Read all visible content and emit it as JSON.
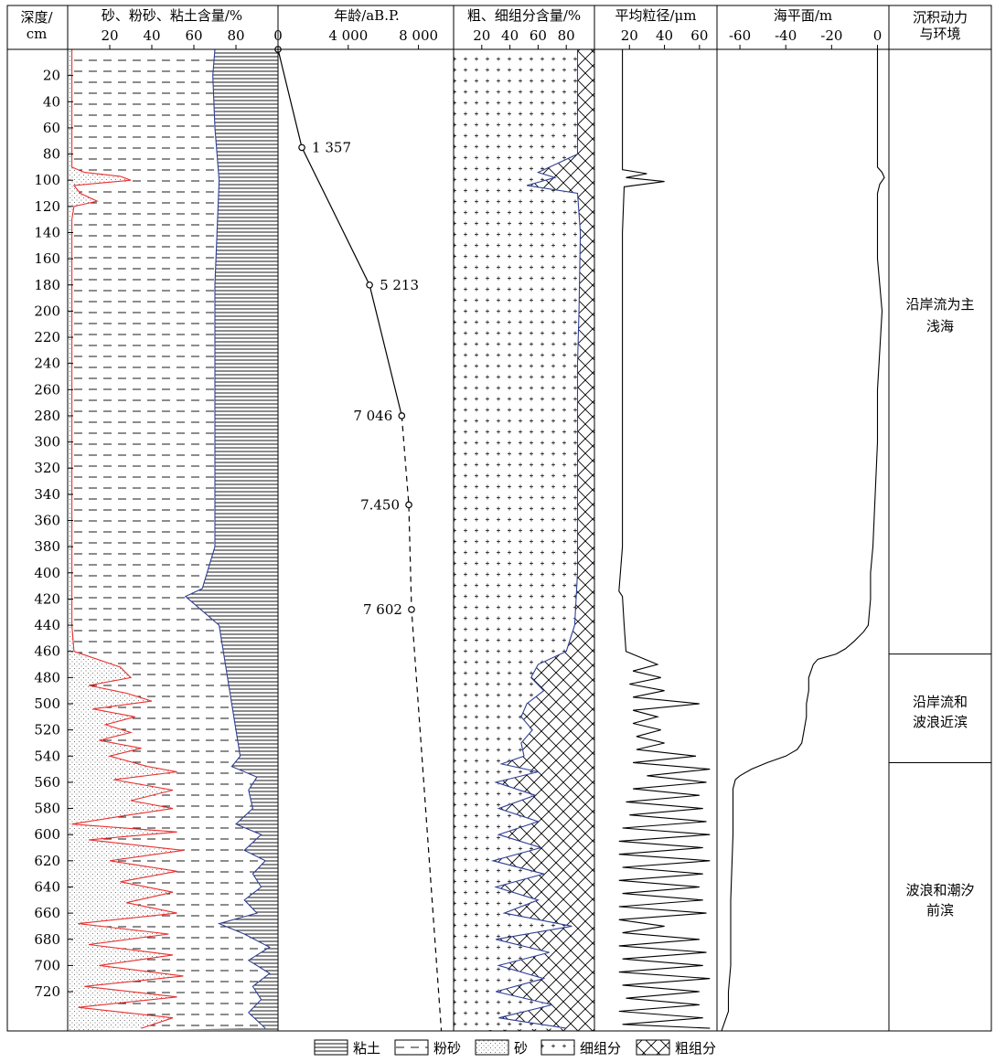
{
  "chart_data": {
    "type": "line",
    "depth_axis": {
      "label_line1": "深度/",
      "label_line2": "cm",
      "range": [
        0,
        750
      ],
      "ticks": [
        20,
        40,
        60,
        80,
        100,
        120,
        140,
        160,
        180,
        200,
        220,
        240,
        260,
        280,
        300,
        320,
        340,
        360,
        380,
        400,
        420,
        440,
        460,
        480,
        500,
        520,
        540,
        560,
        580,
        600,
        620,
        640,
        660,
        680,
        700,
        720
      ]
    },
    "panels": [
      {
        "id": "grain_composition",
        "title": "砂、粉砂、粘土含量/%",
        "xlim": [
          0,
          100
        ],
        "xticks": [
          20,
          40,
          60,
          80
        ],
        "series": [
          {
            "role": "sand",
            "color": "#e8312f",
            "depth": [
              0,
              20,
              40,
              60,
              80,
              90,
              94,
              97,
              100,
              104,
              110,
              116,
              120,
              130,
              160,
              200,
              240,
              280,
              320,
              360,
              400,
              440,
              460,
              472,
              480,
              486,
              492,
              498,
              504,
              510,
              516,
              522,
              528,
              534,
              540,
              548,
              552,
              558,
              566,
              574,
              580,
              586,
              592,
              598,
              604,
              612,
              620,
              628,
              636,
              644,
              652,
              660,
              668,
              676,
              684,
              692,
              700,
              708,
              716,
              724,
              732,
              740,
              748
            ],
            "values": [
              2,
              2,
              2,
              2,
              2,
              2,
              8,
              25,
              30,
              3,
              6,
              14,
              3,
              2,
              2,
              2,
              2,
              2,
              2,
              2,
              2,
              2,
              3,
              25,
              30,
              10,
              28,
              40,
              12,
              32,
              18,
              30,
              15,
              35,
              20,
              38,
              52,
              22,
              50,
              30,
              50,
              25,
              2,
              52,
              10,
              55,
              20,
              52,
              25,
              50,
              28,
              52,
              5,
              48,
              10,
              50,
              15,
              55,
              8,
              52,
              5,
              50,
              35
            ]
          },
          {
            "role": "sand_plus_silt",
            "color": "#2f3f94",
            "depth": [
              0,
              20,
              60,
              100,
              140,
              180,
              220,
              260,
              300,
              340,
              380,
              412,
              418,
              440,
              460,
              480,
              500,
              520,
              540,
              548,
              556,
              566,
              580,
              592,
              600,
              612,
              620,
              630,
              640,
              650,
              660,
              668,
              676,
              686,
              696,
              706,
              716,
              726,
              736,
              748
            ],
            "values": [
              70,
              69,
              70,
              72,
              71,
              70,
              70,
              70,
              70,
              70,
              70,
              64,
              56,
              72,
              74,
              76,
              78,
              80,
              82,
              78,
              90,
              86,
              88,
              80,
              92,
              84,
              94,
              88,
              92,
              84,
              90,
              72,
              84,
              96,
              86,
              96,
              88,
              92,
              86,
              94
            ]
          }
        ]
      },
      {
        "id": "age",
        "title": "年龄/aB.P.",
        "xlim": [
          0,
          10000
        ],
        "xtick_labels": [
          "0",
          "4 000",
          "8 000"
        ],
        "xtick_values": [
          0,
          4000,
          8000
        ],
        "points": [
          {
            "depth": 0,
            "age": 0,
            "label": ""
          },
          {
            "depth": 75,
            "age": 1357,
            "label": "1 357"
          },
          {
            "depth": 180,
            "age": 5213,
            "label": "5 213"
          },
          {
            "depth": 280,
            "age": 7046,
            "label": "7 046"
          },
          {
            "depth": 348,
            "age": 7450,
            "label": "7.450"
          },
          {
            "depth": 428,
            "age": 7602,
            "label": "7 602"
          }
        ],
        "extrapolated_bottom": {
          "depth": 750,
          "age": 9300
        }
      },
      {
        "id": "fraction_content",
        "title": "粗、细组分含量/%",
        "xlim": [
          0,
          100
        ],
        "xtick_values": [
          20,
          40,
          60,
          80
        ],
        "series": [
          {
            "role": "fine_fraction_boundary",
            "color": "#2f3f94",
            "depth": [
              0,
              40,
              80,
              94,
              98,
              104,
              110,
              140,
              200,
              240,
              280,
              320,
              360,
              400,
              440,
              460,
              470,
              480,
              490,
              500,
              510,
              520,
              530,
              540,
              546,
              552,
              560,
              570,
              580,
              590,
              600,
              610,
              620,
              630,
              640,
              650,
              660,
              670,
              680,
              690,
              700,
              710,
              720,
              730,
              740,
              748
            ],
            "values": [
              88,
              88,
              88,
              60,
              72,
              52,
              88,
              90,
              89,
              88,
              88,
              88,
              88,
              88,
              86,
              80,
              60,
              55,
              64,
              52,
              48,
              56,
              48,
              50,
              34,
              60,
              30,
              58,
              32,
              60,
              32,
              62,
              28,
              64,
              30,
              60,
              36,
              84,
              30,
              68,
              32,
              64,
              30,
              70,
              32,
              80
            ]
          }
        ]
      },
      {
        "id": "mean_grain_size",
        "title": "平均粒径/μm",
        "xlim": [
          0,
          70
        ],
        "xticks": [
          20,
          40,
          60
        ],
        "series": [
          {
            "role": "mean_grain_size",
            "color": "#000000",
            "depth": [
              0,
              20,
              60,
              92,
              95,
              98,
              101,
              105,
              140,
              200,
              260,
              320,
              380,
              414,
              418,
              440,
              460,
              470,
              475,
              480,
              485,
              490,
              495,
              500,
              505,
              510,
              515,
              520,
              525,
              530,
              535,
              540,
              545,
              550,
              555,
              560,
              565,
              570,
              575,
              580,
              585,
              590,
              595,
              600,
              605,
              610,
              615,
              620,
              625,
              630,
              635,
              640,
              645,
              650,
              655,
              660,
              665,
              670,
              675,
              680,
              685,
              690,
              695,
              700,
              705,
              710,
              715,
              720,
              725,
              730,
              735,
              740,
              745,
              748
            ],
            "values": [
              16,
              16,
              16,
              16,
              30,
              18,
              40,
              17,
              16,
              16,
              16,
              16,
              16,
              14,
              16,
              17,
              18,
              36,
              22,
              38,
              20,
              40,
              22,
              60,
              22,
              36,
              22,
              38,
              24,
              40,
              24,
              58,
              22,
              66,
              30,
              64,
              22,
              60,
              18,
              62,
              20,
              64,
              16,
              66,
              14,
              62,
              14,
              66,
              16,
              62,
              14,
              60,
              16,
              62,
              14,
              64,
              14,
              40,
              16,
              60,
              14,
              64,
              16,
              62,
              14,
              66,
              16,
              60,
              18,
              60,
              14,
              62,
              16,
              66
            ]
          }
        ]
      },
      {
        "id": "sea_level",
        "title": "海平面/m",
        "xlim": [
          -70,
          5
        ],
        "xtick_labels": [
          "-60",
          "-40",
          "-20",
          "0"
        ],
        "xtick_values": [
          -60,
          -40,
          -20,
          0
        ],
        "series": [
          {
            "role": "sea_level",
            "color": "#000000",
            "depth": [
              0,
              50,
              90,
              94,
              98,
              103,
              110,
              130,
              160,
              200,
              230,
              260,
              300,
              340,
              380,
              400,
              420,
              440,
              445,
              452,
              458,
              462,
              466,
              470,
              480,
              490,
              500,
              510,
              520,
              530,
              535,
              540,
              545,
              550,
              555,
              558,
              565,
              600,
              650,
              700,
              720,
              735,
              745,
              750
            ],
            "values": [
              0,
              0,
              0,
              2,
              3,
              1,
              0,
              0,
              0,
              2,
              1,
              0,
              0,
              -1,
              -2,
              -3,
              -3,
              -4,
              -6,
              -10,
              -14,
              -18,
              -26,
              -28,
              -30,
              -30,
              -31,
              -31,
              -32,
              -33,
              -35,
              -40,
              -48,
              -55,
              -60,
              -62,
              -63,
              -63,
              -64,
              -64,
              -65,
              -65,
              -67,
              -68
            ]
          }
        ]
      },
      {
        "id": "environment",
        "title_line1": "沉积动力",
        "title_line2": "与环境",
        "zones": [
          {
            "from": 0,
            "to": 462,
            "label_line1": "沿岸流为主",
            "label_line2": "浅海"
          },
          {
            "from": 462,
            "to": 545,
            "label_line1": "沿岸流和",
            "label_line2": "波浪近滨"
          },
          {
            "from": 545,
            "to": 750,
            "label_line1": "波浪和潮汐",
            "label_line2": "前滨"
          }
        ]
      }
    ],
    "legend": {
      "items": [
        {
          "name": "粘土",
          "pattern": "horizontal-lines"
        },
        {
          "name": "粉砂",
          "pattern": "dashed-lines"
        },
        {
          "name": "砂",
          "pattern": "dots"
        },
        {
          "name": "细组分",
          "pattern": "plus"
        },
        {
          "name": "粗组分",
          "pattern": "cross-hatch"
        }
      ]
    }
  }
}
